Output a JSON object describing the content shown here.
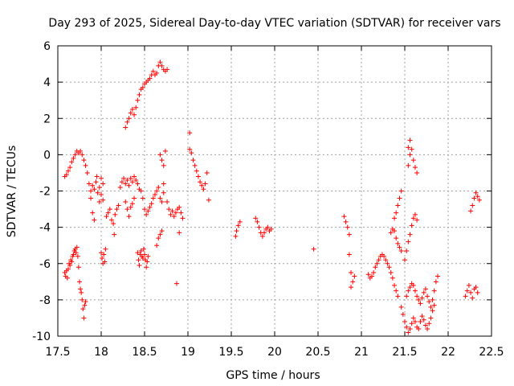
{
  "chart_data": {
    "type": "scatter",
    "title": "Day 293 of 2025, Sidereal Day-to-day VTEC variation (SDTVAR) for receiver vars",
    "xlabel": "GPS time / hours",
    "ylabel": "SDTVAR / TECUs",
    "xlim": [
      17.5,
      22.5
    ],
    "ylim": [
      -10,
      6
    ],
    "xticks": [
      17.5,
      18,
      18.5,
      19,
      19.5,
      20,
      20.5,
      21,
      21.5,
      22,
      22.5
    ],
    "xtick_labels": [
      "17.5",
      "18",
      "18.5",
      "19",
      "19.5",
      "20",
      "20.5",
      "21",
      "21.5",
      "22",
      "22.5"
    ],
    "yticks": [
      -10,
      -8,
      -6,
      -4,
      -2,
      0,
      2,
      4,
      6
    ],
    "ytick_labels": [
      "-10",
      "-8",
      "-6",
      "-4",
      "-2",
      "0",
      "2",
      "4",
      "6"
    ],
    "grid": true,
    "marker": "+",
    "color": "#ff0000",
    "series": [
      {
        "name": "SDTVAR",
        "points": [
          [
            17.58,
            -6.5
          ],
          [
            17.59,
            -6.7
          ],
          [
            17.6,
            -6.4
          ],
          [
            17.61,
            -6.8
          ],
          [
            17.62,
            -6.3
          ],
          [
            17.63,
            -6.0
          ],
          [
            17.64,
            -6.1
          ],
          [
            17.65,
            -5.8
          ],
          [
            17.66,
            -5.9
          ],
          [
            17.67,
            -5.6
          ],
          [
            17.68,
            -5.5
          ],
          [
            17.69,
            -5.3
          ],
          [
            17.7,
            -5.2
          ],
          [
            17.71,
            -5.4
          ],
          [
            17.72,
            -5.1
          ],
          [
            17.73,
            -5.6
          ],
          [
            17.74,
            -6.2
          ],
          [
            17.75,
            -7.0
          ],
          [
            17.76,
            -7.4
          ],
          [
            17.77,
            -7.6
          ],
          [
            17.78,
            -8.0
          ],
          [
            17.79,
            -8.5
          ],
          [
            17.8,
            -9.0
          ],
          [
            17.81,
            -8.3
          ],
          [
            17.82,
            -8.1
          ],
          [
            17.58,
            -1.2
          ],
          [
            17.6,
            -1.1
          ],
          [
            17.62,
            -0.9
          ],
          [
            17.64,
            -0.7
          ],
          [
            17.66,
            -0.4
          ],
          [
            17.68,
            -0.2
          ],
          [
            17.7,
            0.0
          ],
          [
            17.72,
            0.2
          ],
          [
            17.74,
            0.1
          ],
          [
            17.76,
            0.2
          ],
          [
            17.78,
            0.0
          ],
          [
            17.8,
            -0.3
          ],
          [
            17.82,
            -0.6
          ],
          [
            17.84,
            -1.0
          ],
          [
            17.86,
            -1.6
          ],
          [
            17.88,
            -2.0
          ],
          [
            17.9,
            -1.7
          ],
          [
            17.92,
            -1.9
          ],
          [
            17.94,
            -1.5
          ],
          [
            17.96,
            -2.1
          ],
          [
            17.98,
            -1.8
          ],
          [
            18.0,
            -1.3
          ],
          [
            18.02,
            -1.6
          ],
          [
            17.88,
            -2.4
          ],
          [
            17.9,
            -3.2
          ],
          [
            17.92,
            -3.6
          ],
          [
            17.95,
            -1.2
          ],
          [
            17.98,
            -2.6
          ],
          [
            18.0,
            -2.2
          ],
          [
            18.02,
            -2.5
          ],
          [
            18.0,
            -5.4
          ],
          [
            18.01,
            -5.7
          ],
          [
            18.02,
            -6.0
          ],
          [
            18.03,
            -5.5
          ],
          [
            18.04,
            -5.9
          ],
          [
            18.05,
            -5.2
          ],
          [
            18.06,
            -3.4
          ],
          [
            18.08,
            -3.2
          ],
          [
            18.1,
            -3.0
          ],
          [
            18.12,
            -3.6
          ],
          [
            18.14,
            -3.8
          ],
          [
            18.16,
            -3.3
          ],
          [
            18.18,
            -3.0
          ],
          [
            18.2,
            -2.8
          ],
          [
            18.15,
            -4.4
          ],
          [
            18.22,
            -1.8
          ],
          [
            18.24,
            -1.5
          ],
          [
            18.26,
            -1.3
          ],
          [
            18.28,
            -1.6
          ],
          [
            18.3,
            -1.4
          ],
          [
            18.32,
            -1.7
          ],
          [
            18.34,
            -1.3
          ],
          [
            18.36,
            -1.5
          ],
          [
            18.38,
            -1.2
          ],
          [
            18.4,
            -1.4
          ],
          [
            18.42,
            -1.6
          ],
          [
            18.44,
            -1.9
          ],
          [
            18.28,
            -2.6
          ],
          [
            18.3,
            -3.0
          ],
          [
            18.32,
            -3.4
          ],
          [
            18.34,
            -2.9
          ],
          [
            18.36,
            -2.7
          ],
          [
            18.38,
            -2.4
          ],
          [
            18.28,
            1.5
          ],
          [
            18.3,
            1.8
          ],
          [
            18.32,
            2.0
          ],
          [
            18.34,
            2.3
          ],
          [
            18.36,
            2.5
          ],
          [
            18.38,
            2.2
          ],
          [
            18.4,
            2.6
          ],
          [
            18.42,
            3.0
          ],
          [
            18.44,
            3.3
          ],
          [
            18.46,
            3.6
          ],
          [
            18.48,
            3.7
          ],
          [
            18.5,
            3.9
          ],
          [
            18.52,
            4.0
          ],
          [
            18.54,
            4.1
          ],
          [
            18.56,
            4.2
          ],
          [
            18.58,
            4.4
          ],
          [
            18.6,
            4.6
          ],
          [
            18.62,
            4.4
          ],
          [
            18.64,
            4.5
          ],
          [
            18.66,
            4.9
          ],
          [
            18.68,
            5.1
          ],
          [
            18.7,
            4.9
          ],
          [
            18.72,
            4.7
          ],
          [
            18.74,
            4.6
          ],
          [
            18.76,
            4.7
          ],
          [
            18.42,
            -5.4
          ],
          [
            18.43,
            -5.8
          ],
          [
            18.44,
            -6.1
          ],
          [
            18.45,
            -5.5
          ],
          [
            18.46,
            -5.3
          ],
          [
            18.47,
            -5.6
          ],
          [
            18.48,
            -5.7
          ],
          [
            18.49,
            -5.2
          ],
          [
            18.5,
            -5.5
          ],
          [
            18.51,
            -5.8
          ],
          [
            18.52,
            -6.2
          ],
          [
            18.53,
            -5.9
          ],
          [
            18.54,
            -5.6
          ],
          [
            18.46,
            -2.0
          ],
          [
            18.48,
            -2.4
          ],
          [
            18.5,
            -3.0
          ],
          [
            18.52,
            -3.3
          ],
          [
            18.54,
            -3.1
          ],
          [
            18.56,
            -2.9
          ],
          [
            18.58,
            -2.7
          ],
          [
            18.6,
            -2.4
          ],
          [
            18.62,
            -2.2
          ],
          [
            18.64,
            -2.0
          ],
          [
            18.66,
            -1.8
          ],
          [
            18.68,
            -2.4
          ],
          [
            18.7,
            -2.6
          ],
          [
            18.72,
            -2.1
          ],
          [
            18.64,
            -5.0
          ],
          [
            18.66,
            -4.6
          ],
          [
            18.68,
            -4.4
          ],
          [
            18.7,
            -4.2
          ],
          [
            18.68,
            0.0
          ],
          [
            18.7,
            -0.3
          ],
          [
            18.72,
            -0.6
          ],
          [
            18.74,
            0.2
          ],
          [
            18.72,
            -1.6
          ],
          [
            18.76,
            -2.6
          ],
          [
            18.78,
            -3.0
          ],
          [
            18.8,
            -3.3
          ],
          [
            18.82,
            -3.1
          ],
          [
            18.84,
            -3.4
          ],
          [
            18.86,
            -3.2
          ],
          [
            18.88,
            -3.0
          ],
          [
            18.9,
            -2.9
          ],
          [
            18.92,
            -3.2
          ],
          [
            18.94,
            -3.5
          ],
          [
            18.9,
            -4.3
          ],
          [
            18.87,
            -7.1
          ],
          [
            19.02,
            1.2
          ],
          [
            19.02,
            0.3
          ],
          [
            19.04,
            0.1
          ],
          [
            19.06,
            -0.3
          ],
          [
            19.08,
            -0.6
          ],
          [
            19.1,
            -0.9
          ],
          [
            19.12,
            -1.2
          ],
          [
            19.14,
            -1.5
          ],
          [
            19.16,
            -1.7
          ],
          [
            19.18,
            -1.9
          ],
          [
            19.2,
            -1.6
          ],
          [
            19.22,
            -1.0
          ],
          [
            19.24,
            -2.5
          ],
          [
            19.55,
            -4.5
          ],
          [
            19.56,
            -4.2
          ],
          [
            19.58,
            -3.9
          ],
          [
            19.6,
            -3.7
          ],
          [
            19.78,
            -3.5
          ],
          [
            19.8,
            -3.7
          ],
          [
            19.82,
            -4.0
          ],
          [
            19.84,
            -4.3
          ],
          [
            19.86,
            -4.5
          ],
          [
            19.88,
            -4.3
          ],
          [
            19.9,
            -4.1
          ],
          [
            19.92,
            -4.0
          ],
          [
            19.94,
            -4.2
          ],
          [
            19.96,
            -4.1
          ],
          [
            20.45,
            -5.2
          ],
          [
            20.8,
            -3.4
          ],
          [
            20.82,
            -3.7
          ],
          [
            20.84,
            -4.0
          ],
          [
            20.86,
            -4.4
          ],
          [
            20.86,
            -5.5
          ],
          [
            20.88,
            -6.5
          ],
          [
            20.9,
            -7.0
          ],
          [
            20.92,
            -6.7
          ],
          [
            20.88,
            -7.3
          ],
          [
            21.08,
            -6.6
          ],
          [
            21.1,
            -6.8
          ],
          [
            21.12,
            -6.7
          ],
          [
            21.14,
            -6.5
          ],
          [
            21.16,
            -6.2
          ],
          [
            21.18,
            -6.0
          ],
          [
            21.2,
            -5.8
          ],
          [
            21.22,
            -5.6
          ],
          [
            21.24,
            -5.5
          ],
          [
            21.26,
            -5.6
          ],
          [
            21.28,
            -5.8
          ],
          [
            21.3,
            -6.0
          ],
          [
            21.32,
            -6.2
          ],
          [
            21.34,
            -6.5
          ],
          [
            21.36,
            -6.8
          ],
          [
            21.38,
            -7.2
          ],
          [
            21.4,
            -7.5
          ],
          [
            21.42,
            -7.8
          ],
          [
            21.34,
            -4.3
          ],
          [
            21.36,
            -4.1
          ],
          [
            21.38,
            -4.2
          ],
          [
            21.4,
            -4.6
          ],
          [
            21.42,
            -4.9
          ],
          [
            21.44,
            -5.1
          ],
          [
            21.46,
            -5.3
          ],
          [
            21.38,
            -3.5
          ],
          [
            21.4,
            -3.2
          ],
          [
            21.42,
            -2.8
          ],
          [
            21.44,
            -2.4
          ],
          [
            21.46,
            -2.0
          ],
          [
            21.46,
            -8.4
          ],
          [
            21.48,
            -8.8
          ],
          [
            21.5,
            -9.2
          ],
          [
            21.52,
            -9.5
          ],
          [
            21.54,
            -9.8
          ],
          [
            21.56,
            -9.6
          ],
          [
            21.58,
            -9.3
          ],
          [
            21.6,
            -9.0
          ],
          [
            21.62,
            -9.2
          ],
          [
            21.64,
            -9.5
          ],
          [
            21.66,
            -9.6
          ],
          [
            21.68,
            -9.2
          ],
          [
            21.7,
            -8.9
          ],
          [
            21.72,
            -9.1
          ],
          [
            21.74,
            -9.4
          ],
          [
            21.76,
            -9.6
          ],
          [
            21.78,
            -9.3
          ],
          [
            21.8,
            -9.0
          ],
          [
            21.82,
            -8.6
          ],
          [
            21.84,
            -8.3
          ],
          [
            21.5,
            -5.8
          ],
          [
            21.52,
            -5.3
          ],
          [
            21.54,
            -4.8
          ],
          [
            21.56,
            -4.4
          ],
          [
            21.58,
            -3.9
          ],
          [
            21.6,
            -3.5
          ],
          [
            21.62,
            -3.3
          ],
          [
            21.64,
            -3.6
          ],
          [
            21.52,
            -7.8
          ],
          [
            21.54,
            -7.5
          ],
          [
            21.56,
            -7.3
          ],
          [
            21.58,
            -7.1
          ],
          [
            21.6,
            -7.2
          ],
          [
            21.62,
            -7.5
          ],
          [
            21.64,
            -7.8
          ],
          [
            21.66,
            -8.0
          ],
          [
            21.68,
            -8.2
          ],
          [
            21.7,
            -7.9
          ],
          [
            21.72,
            -7.6
          ],
          [
            21.74,
            -7.4
          ],
          [
            21.76,
            -7.8
          ],
          [
            21.78,
            -8.1
          ],
          [
            21.8,
            -8.4
          ],
          [
            21.82,
            -8.0
          ],
          [
            21.84,
            -7.5
          ],
          [
            21.86,
            -7.0
          ],
          [
            21.88,
            -6.7
          ],
          [
            21.54,
            0.4
          ],
          [
            21.56,
            0.8
          ],
          [
            21.58,
            0.3
          ],
          [
            21.56,
            0.0
          ],
          [
            21.6,
            -0.3
          ],
          [
            21.62,
            -0.7
          ],
          [
            21.64,
            -1.0
          ],
          [
            21.54,
            -0.6
          ],
          [
            22.2,
            -7.8
          ],
          [
            22.22,
            -7.5
          ],
          [
            22.24,
            -7.2
          ],
          [
            22.26,
            -7.6
          ],
          [
            22.28,
            -7.9
          ],
          [
            22.3,
            -7.4
          ],
          [
            22.32,
            -7.3
          ],
          [
            22.34,
            -7.6
          ],
          [
            22.26,
            -3.1
          ],
          [
            22.28,
            -2.8
          ],
          [
            22.3,
            -2.4
          ],
          [
            22.32,
            -2.1
          ],
          [
            22.34,
            -2.3
          ],
          [
            22.36,
            -2.5
          ]
        ]
      }
    ]
  }
}
